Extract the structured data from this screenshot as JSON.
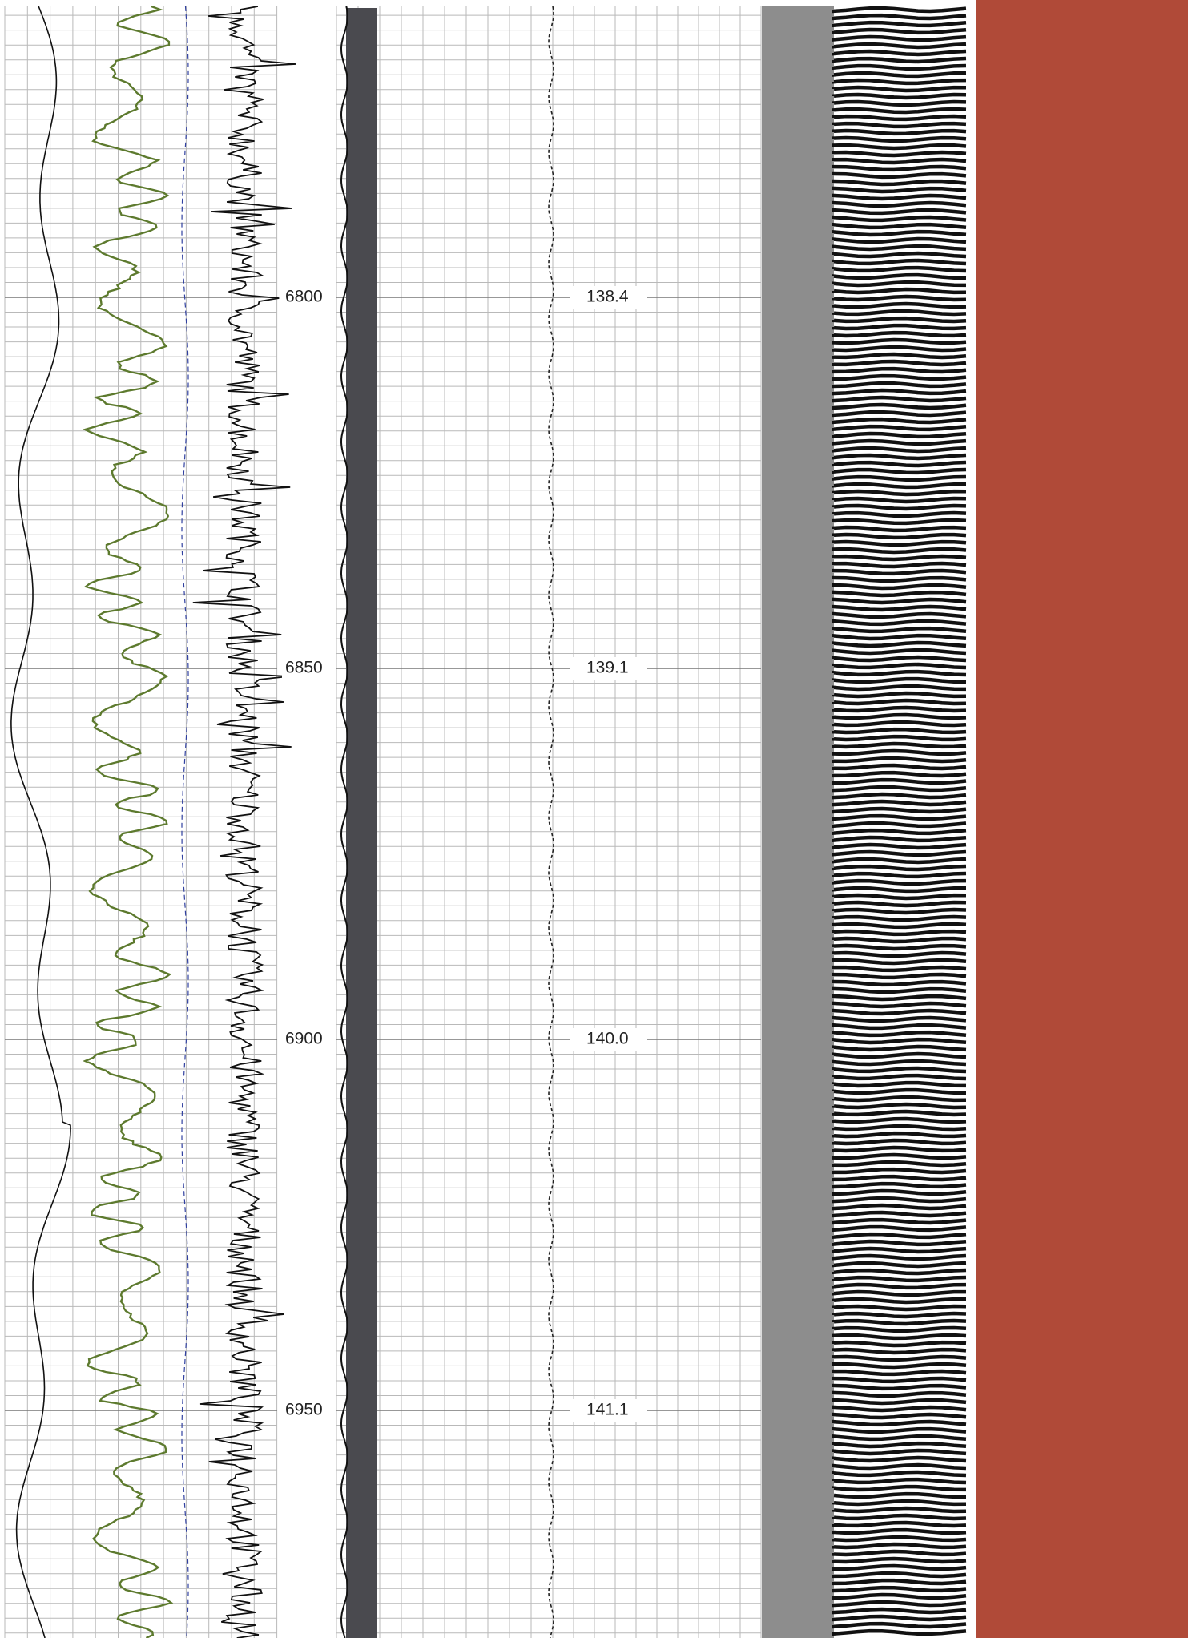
{
  "depth_track": {
    "labels": [
      "6800",
      "6850",
      "6900",
      "6950"
    ]
  },
  "time_track": {
    "labels": [
      "138.4",
      "139.1",
      "140.0",
      "141.1"
    ]
  }
}
